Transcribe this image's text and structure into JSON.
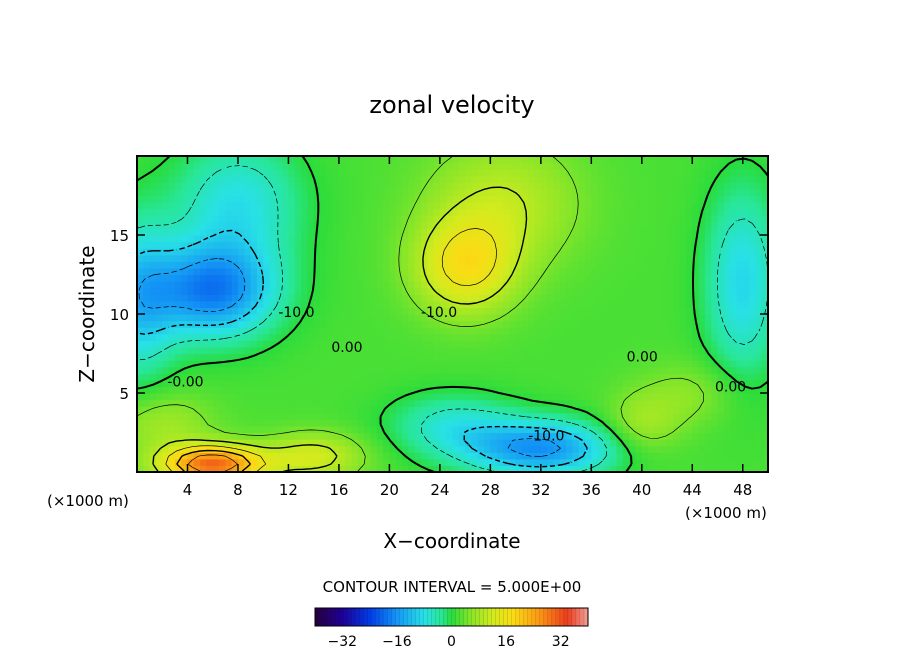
{
  "chart_data": {
    "type": "heatmap",
    "title": "zonal velocity",
    "xlabel": "X−coordinate",
    "ylabel": "Z−coordinate",
    "x_unit_left": "(×1000 m)",
    "x_unit_right": "(×1000 m)",
    "xlim": [
      0,
      50
    ],
    "ylim": [
      0,
      20
    ],
    "x_ticks": [
      4,
      8,
      12,
      16,
      20,
      24,
      28,
      32,
      36,
      40,
      44,
      48
    ],
    "y_ticks": [
      5,
      10,
      15
    ],
    "contour_interval_text": "CONTOUR INTERVAL = 5.000E+00",
    "contour_labels": [
      {
        "text": "-10.0",
        "x": 11.2,
        "y": 9.8
      },
      {
        "text": "-10.0",
        "x": 22.5,
        "y": 9.8
      },
      {
        "text": "0.00",
        "x": 15.4,
        "y": 7.6
      },
      {
        "text": "0.00",
        "x": 38.8,
        "y": 7.0
      },
      {
        "text": "-0.00",
        "x": 2.4,
        "y": 5.4
      },
      {
        "text": "0.00",
        "x": 45.8,
        "y": 5.1
      },
      {
        "text": "-10.0",
        "x": 31.0,
        "y": 2.0
      }
    ],
    "colorbar": {
      "range": [
        -40,
        40
      ],
      "ticks": [
        "−32",
        "−16",
        "0",
        "16",
        "32"
      ],
      "tick_values": [
        -32,
        -16,
        0,
        16,
        32
      ]
    },
    "field": {
      "background": 2,
      "centers": [
        {
          "x": 6,
          "y": 11.5,
          "value": -20,
          "sx": 5,
          "sy": 3
        },
        {
          "x": 0,
          "y": 11,
          "value": -12,
          "sx": 3,
          "sy": 5
        },
        {
          "x": 8,
          "y": 17,
          "value": -10,
          "sx": 5,
          "sy": 4
        },
        {
          "x": 26,
          "y": 13,
          "value": 14,
          "sx": 4,
          "sy": 3
        },
        {
          "x": 29,
          "y": 17,
          "value": 8,
          "sx": 6,
          "sy": 4
        },
        {
          "x": 32,
          "y": 1.5,
          "value": -18,
          "sx": 6,
          "sy": 1.8
        },
        {
          "x": 25,
          "y": 3,
          "value": -8,
          "sx": 5,
          "sy": 2
        },
        {
          "x": 6,
          "y": 0.5,
          "value": 28,
          "sx": 4,
          "sy": 1.2
        },
        {
          "x": 14,
          "y": 1,
          "value": 10,
          "sx": 4,
          "sy": 1.5
        },
        {
          "x": 48,
          "y": 12,
          "value": -11,
          "sx": 3,
          "sy": 6
        },
        {
          "x": 44,
          "y": 5,
          "value": 4,
          "sx": 4,
          "sy": 2
        },
        {
          "x": 40,
          "y": 3,
          "value": 6,
          "sx": 3,
          "sy": 2
        },
        {
          "x": 2,
          "y": 3,
          "value": 6,
          "sx": 4,
          "sy": 2
        }
      ]
    }
  }
}
